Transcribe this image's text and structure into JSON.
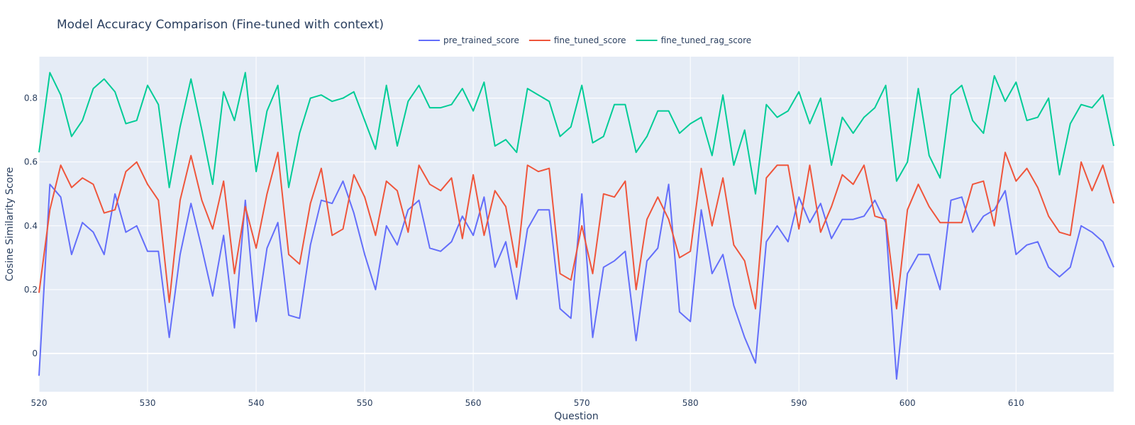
{
  "chart_data": {
    "type": "line",
    "title": "Model Accuracy Comparison (Fine-tuned with context)",
    "xlabel": "Question",
    "ylabel": "Cosine Similarity Score",
    "xlim": [
      520,
      619
    ],
    "ylim": [
      -0.12,
      0.93
    ],
    "x_ticks": [
      520,
      530,
      540,
      550,
      560,
      570,
      580,
      590,
      600,
      610
    ],
    "y_ticks": [
      0,
      0.2,
      0.4,
      0.6,
      0.8
    ],
    "y_tick_labels": [
      "0",
      "0.2",
      "0.4",
      "0.6",
      "0.8"
    ],
    "grid": true,
    "legend_position": "top-center",
    "plot_bg": "#e5ecf6",
    "x": [
      520,
      521,
      522,
      523,
      524,
      525,
      526,
      527,
      528,
      529,
      530,
      531,
      532,
      533,
      534,
      535,
      536,
      537,
      538,
      539,
      540,
      541,
      542,
      543,
      544,
      545,
      546,
      547,
      548,
      549,
      550,
      551,
      552,
      553,
      554,
      555,
      556,
      557,
      558,
      559,
      560,
      561,
      562,
      563,
      564,
      565,
      566,
      567,
      568,
      569,
      570,
      571,
      572,
      573,
      574,
      575,
      576,
      577,
      578,
      579,
      580,
      581,
      582,
      583,
      584,
      585,
      586,
      587,
      588,
      589,
      590,
      591,
      592,
      593,
      594,
      595,
      596,
      597,
      598,
      599,
      600,
      601,
      602,
      603,
      604,
      605,
      606,
      607,
      608,
      609,
      610,
      611,
      612,
      613,
      614,
      615,
      616,
      617,
      618,
      619
    ],
    "series": [
      {
        "name": "pre_trained_score",
        "color": "#636efa",
        "values": [
          -0.07,
          0.53,
          0.49,
          0.31,
          0.41,
          0.38,
          0.31,
          0.5,
          0.38,
          0.4,
          0.32,
          0.32,
          0.05,
          0.31,
          0.47,
          0.33,
          0.18,
          0.37,
          0.08,
          0.48,
          0.1,
          0.33,
          0.41,
          0.12,
          0.11,
          0.34,
          0.48,
          0.47,
          0.54,
          0.44,
          0.31,
          0.2,
          0.4,
          0.34,
          0.45,
          0.48,
          0.33,
          0.32,
          0.35,
          0.43,
          0.37,
          0.49,
          0.27,
          0.35,
          0.17,
          0.39,
          0.45,
          0.45,
          0.14,
          0.11,
          0.5,
          0.05,
          0.27,
          0.29,
          0.32,
          0.04,
          0.29,
          0.33,
          0.53,
          0.13,
          0.1,
          0.45,
          0.25,
          0.31,
          0.15,
          0.05,
          -0.03,
          0.35,
          0.4,
          0.35,
          0.49,
          0.41,
          0.47,
          0.36,
          0.42,
          0.42,
          0.43,
          0.48,
          0.41,
          -0.08,
          0.25,
          0.31,
          0.31,
          0.2,
          0.48,
          0.49,
          0.38,
          0.43,
          0.45,
          0.51,
          0.31,
          0.34,
          0.35,
          0.27,
          0.24,
          0.27,
          0.4,
          0.38,
          0.35,
          0.27
        ]
      },
      {
        "name": "fine_tuned_score",
        "color": "#ef553b",
        "values": [
          0.19,
          0.45,
          0.59,
          0.52,
          0.55,
          0.53,
          0.44,
          0.45,
          0.57,
          0.6,
          0.53,
          0.48,
          0.16,
          0.48,
          0.62,
          0.48,
          0.39,
          0.54,
          0.25,
          0.46,
          0.33,
          0.5,
          0.63,
          0.31,
          0.28,
          0.47,
          0.58,
          0.37,
          0.39,
          0.56,
          0.49,
          0.37,
          0.54,
          0.51,
          0.38,
          0.59,
          0.53,
          0.51,
          0.55,
          0.36,
          0.56,
          0.37,
          0.51,
          0.46,
          0.27,
          0.59,
          0.57,
          0.58,
          0.25,
          0.23,
          0.4,
          0.25,
          0.5,
          0.49,
          0.54,
          0.2,
          0.42,
          0.49,
          0.42,
          0.3,
          0.32,
          0.58,
          0.4,
          0.55,
          0.34,
          0.29,
          0.14,
          0.55,
          0.59,
          0.59,
          0.39,
          0.59,
          0.38,
          0.46,
          0.56,
          0.53,
          0.59,
          0.43,
          0.42,
          0.14,
          0.45,
          0.53,
          0.46,
          0.41,
          0.41,
          0.41,
          0.53,
          0.54,
          0.4,
          0.63,
          0.54,
          0.58,
          0.52,
          0.43,
          0.38,
          0.37,
          0.6,
          0.51,
          0.59,
          0.47
        ]
      },
      {
        "name": "fine_tuned_rag_score",
        "color": "#00cc96",
        "values": [
          0.63,
          0.88,
          0.81,
          0.68,
          0.73,
          0.83,
          0.86,
          0.82,
          0.72,
          0.73,
          0.84,
          0.78,
          0.52,
          0.71,
          0.86,
          0.7,
          0.53,
          0.82,
          0.73,
          0.88,
          0.57,
          0.76,
          0.84,
          0.52,
          0.69,
          0.8,
          0.81,
          0.79,
          0.8,
          0.82,
          0.73,
          0.64,
          0.84,
          0.65,
          0.79,
          0.84,
          0.77,
          0.77,
          0.78,
          0.83,
          0.76,
          0.85,
          0.65,
          0.67,
          0.63,
          0.83,
          0.81,
          0.79,
          0.68,
          0.71,
          0.84,
          0.66,
          0.68,
          0.78,
          0.78,
          0.63,
          0.68,
          0.76,
          0.76,
          0.69,
          0.72,
          0.74,
          0.62,
          0.81,
          0.59,
          0.7,
          0.5,
          0.78,
          0.74,
          0.76,
          0.82,
          0.72,
          0.8,
          0.59,
          0.74,
          0.69,
          0.74,
          0.77,
          0.84,
          0.54,
          0.6,
          0.83,
          0.62,
          0.55,
          0.81,
          0.84,
          0.73,
          0.69,
          0.87,
          0.79,
          0.85,
          0.73,
          0.74,
          0.8,
          0.56,
          0.72,
          0.78,
          0.77,
          0.81,
          0.65
        ]
      }
    ]
  }
}
